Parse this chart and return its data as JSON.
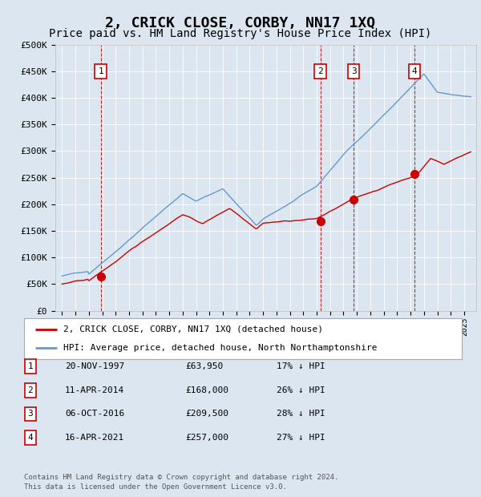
{
  "title": "2, CRICK CLOSE, CORBY, NN17 1XQ",
  "subtitle": "Price paid vs. HM Land Registry's House Price Index (HPI)",
  "title_fontsize": 13,
  "subtitle_fontsize": 10,
  "bg_color": "#dce6f0",
  "ylabel_values": [
    0,
    50000,
    100000,
    150000,
    200000,
    250000,
    300000,
    350000,
    400000,
    450000,
    500000
  ],
  "ylabel_labels": [
    "£0",
    "£50K",
    "£100K",
    "£150K",
    "£200K",
    "£250K",
    "£300K",
    "£350K",
    "£400K",
    "£450K",
    "£500K"
  ],
  "red_line_color": "#cc0000",
  "blue_line_color": "#6699cc",
  "vline_color": "#cc0000",
  "transactions": [
    {
      "label": "1",
      "date_num": 1997.89,
      "price": 63950,
      "pct": "17% ↓ HPI",
      "display_date": "20-NOV-1997",
      "display_price": "£63,950"
    },
    {
      "label": "2",
      "date_num": 2014.28,
      "price": 168000,
      "pct": "26% ↓ HPI",
      "display_date": "11-APR-2014",
      "display_price": "£168,000"
    },
    {
      "label": "3",
      "date_num": 2016.76,
      "price": 209500,
      "pct": "28% ↓ HPI",
      "display_date": "06-OCT-2016",
      "display_price": "£209,500"
    },
    {
      "label": "4",
      "date_num": 2021.29,
      "price": 257000,
      "pct": "27% ↓ HPI",
      "display_date": "16-APR-2021",
      "display_price": "£257,000"
    }
  ],
  "legend_red_label": "2, CRICK CLOSE, CORBY, NN17 1XQ (detached house)",
  "legend_blue_label": "HPI: Average price, detached house, North Northamptonshire",
  "footer_line1": "Contains HM Land Registry data © Crown copyright and database right 2024.",
  "footer_line2": "This data is licensed under the Open Government Licence v3.0."
}
